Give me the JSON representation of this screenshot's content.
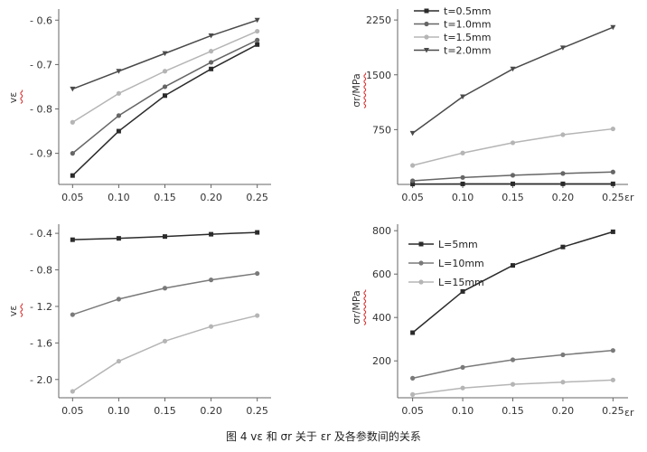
{
  "caption": "图 4   vε 和 σr 关于 εr 及各参数间的关系",
  "colors": {
    "black": "#2b2b2b",
    "dark": "#4a4a4a",
    "mid": "#7a7a7a",
    "light": "#b5b5b5",
    "axis": "#666666",
    "wave": "#d93030"
  },
  "chart_data": [
    {
      "id": "top-left",
      "type": "line",
      "ylabel": "vε",
      "xlabel": "",
      "x": [
        0.05,
        0.1,
        0.15,
        0.2,
        0.25
      ],
      "xticks": [
        "0.05",
        "0.10",
        "0.15",
        "0.20",
        "0.25"
      ],
      "yticks": [
        -0.6,
        -0.7,
        -0.8,
        -0.9
      ],
      "ytick_labels": [
        "- 0.6",
        "- 0.7",
        "- 0.8",
        "- 0.9"
      ],
      "ylim": [
        -0.97,
        -0.575
      ],
      "series": [
        {
          "name": "t=0.5mm",
          "color": "#2b2b2b",
          "marker": "square",
          "values": [
            -0.95,
            -0.85,
            -0.77,
            -0.71,
            -0.655
          ]
        },
        {
          "name": "t=1.0mm",
          "color": "#666666",
          "marker": "circle",
          "values": [
            -0.9,
            -0.815,
            -0.75,
            -0.695,
            -0.645
          ]
        },
        {
          "name": "t=1.5mm",
          "color": "#b5b5b5",
          "marker": "circle",
          "values": [
            -0.83,
            -0.765,
            -0.715,
            -0.67,
            -0.625
          ]
        },
        {
          "name": "t=2.0mm",
          "color": "#4a4a4a",
          "marker": "triangle",
          "values": [
            -0.755,
            -0.715,
            -0.675,
            -0.635,
            -0.6
          ]
        }
      ]
    },
    {
      "id": "top-right",
      "type": "line",
      "ylabel": "σr/MPa",
      "xlabel": "εr",
      "x": [
        0.05,
        0.1,
        0.15,
        0.2,
        0.25
      ],
      "xticks": [
        "0.05",
        "0.10",
        "0.15",
        "0.20",
        "0.25"
      ],
      "yticks": [
        750,
        1500,
        2250
      ],
      "ytick_labels": [
        "750",
        "1500",
        "2250"
      ],
      "ylim": [
        0,
        2400
      ],
      "legend": "top-left",
      "series": [
        {
          "name": "t=0.5mm",
          "color": "#2b2b2b",
          "marker": "square",
          "values": [
            5,
            7,
            8,
            8,
            8
          ]
        },
        {
          "name": "t=1.0mm",
          "color": "#666666",
          "marker": "circle",
          "values": [
            50,
            95,
            125,
            150,
            170
          ]
        },
        {
          "name": "t=1.5mm",
          "color": "#b5b5b5",
          "marker": "circle",
          "values": [
            260,
            430,
            570,
            680,
            760
          ]
        },
        {
          "name": "t=2.0mm",
          "color": "#4a4a4a",
          "marker": "triangle",
          "values": [
            700,
            1200,
            1580,
            1870,
            2150
          ]
        }
      ]
    },
    {
      "id": "bottom-left",
      "type": "line",
      "ylabel": "vε",
      "xlabel": "",
      "x": [
        0.05,
        0.1,
        0.15,
        0.2,
        0.25
      ],
      "xticks": [
        "0.05",
        "0.10",
        "0.15",
        "0.20",
        "0.25"
      ],
      "yticks": [
        -0.4,
        -0.8,
        -1.2,
        -1.6,
        -2.0
      ],
      "ytick_labels": [
        "- 0.4",
        "- 0.8",
        "- 1.2",
        "- 1.6",
        "- 2.0"
      ],
      "ylim": [
        -2.2,
        -0.3
      ],
      "series": [
        {
          "name": "L=5mm",
          "color": "#2b2b2b",
          "marker": "square",
          "values": [
            -0.47,
            -0.455,
            -0.435,
            -0.41,
            -0.39
          ]
        },
        {
          "name": "L=10mm",
          "color": "#7a7a7a",
          "marker": "circle",
          "values": [
            -1.29,
            -1.12,
            -1.0,
            -0.91,
            -0.84
          ]
        },
        {
          "name": "L=15mm",
          "color": "#b5b5b5",
          "marker": "circle",
          "values": [
            -2.13,
            -1.8,
            -1.58,
            -1.42,
            -1.3
          ]
        }
      ]
    },
    {
      "id": "bottom-right",
      "type": "line",
      "ylabel": "σr/MPa",
      "xlabel": "εr",
      "x": [
        0.05,
        0.1,
        0.15,
        0.2,
        0.25
      ],
      "xticks": [
        "0.05",
        "0.10",
        "0.15",
        "0.20",
        "0.25"
      ],
      "yticks": [
        200,
        400,
        600,
        800
      ],
      "ytick_labels": [
        "200",
        "400",
        "600",
        "800"
      ],
      "ylim": [
        30,
        830
      ],
      "legend": "top-left",
      "series": [
        {
          "name": "L=5mm",
          "color": "#2b2b2b",
          "marker": "square",
          "values": [
            330,
            520,
            640,
            725,
            795
          ]
        },
        {
          "name": "L=10mm",
          "color": "#7a7a7a",
          "marker": "circle",
          "values": [
            120,
            170,
            205,
            228,
            248
          ]
        },
        {
          "name": "L=15mm",
          "color": "#b5b5b5",
          "marker": "circle",
          "values": [
            45,
            75,
            92,
            102,
            112
          ]
        }
      ]
    }
  ]
}
